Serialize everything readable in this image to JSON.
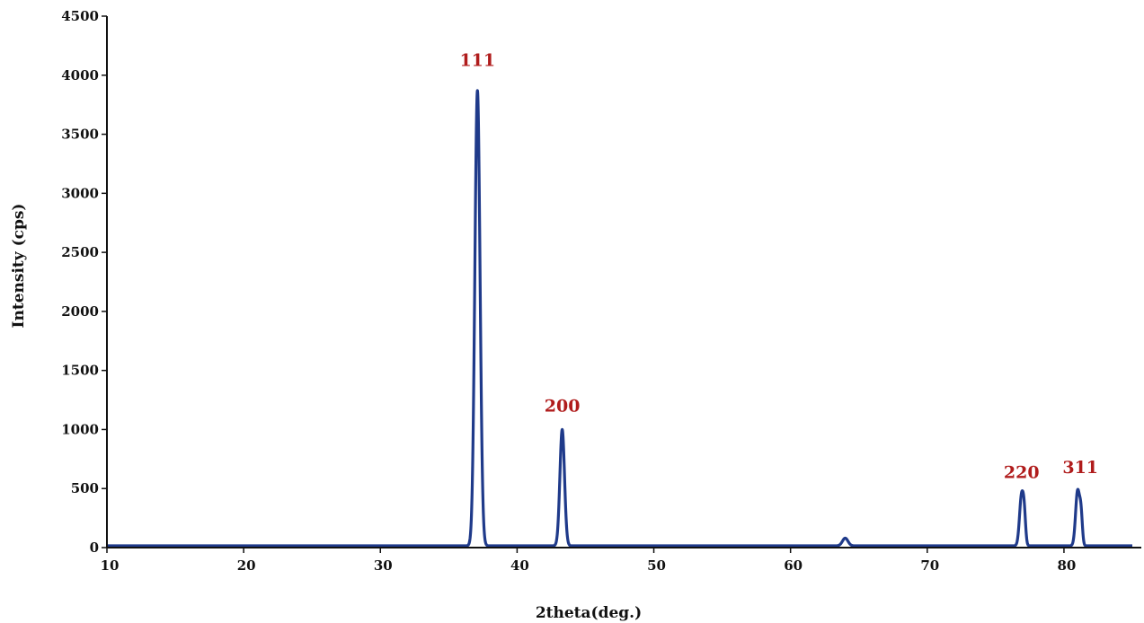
{
  "chart_data": {
    "type": "line",
    "title": "",
    "xlabel": "2theta(deg.)",
    "ylabel": "Intensity (cps)",
    "xlim": [
      10,
      85
    ],
    "ylim": [
      0,
      4500
    ],
    "x_ticks": [
      10,
      20,
      30,
      40,
      50,
      60,
      70,
      80
    ],
    "y_ticks": [
      0,
      500,
      1000,
      1500,
      2000,
      2500,
      3000,
      3500,
      4000,
      4500
    ],
    "grid": false,
    "baseline": 15,
    "series": [
      {
        "color": "#1f3a8a",
        "peaks": [
          {
            "x": 37.1,
            "y": 3870,
            "width": 0.28
          },
          {
            "x": 43.3,
            "y": 1000,
            "width": 0.25
          },
          {
            "x": 64.0,
            "y": 80,
            "width": 0.3
          },
          {
            "x": 76.9,
            "y": 440,
            "width": 0.22
          },
          {
            "x": 77.1,
            "y": 210,
            "width": 0.15
          },
          {
            "x": 81.0,
            "y": 480,
            "width": 0.22
          },
          {
            "x": 81.25,
            "y": 250,
            "width": 0.15
          }
        ]
      }
    ],
    "annotations": [
      {
        "text": "111",
        "x": 37.1,
        "y": 4080
      },
      {
        "text": "200",
        "x": 43.3,
        "y": 1150
      },
      {
        "text": "220",
        "x": 76.9,
        "y": 590
      },
      {
        "text": "311",
        "x": 81.2,
        "y": 630
      }
    ],
    "annotation_color": "#b01c1c"
  }
}
